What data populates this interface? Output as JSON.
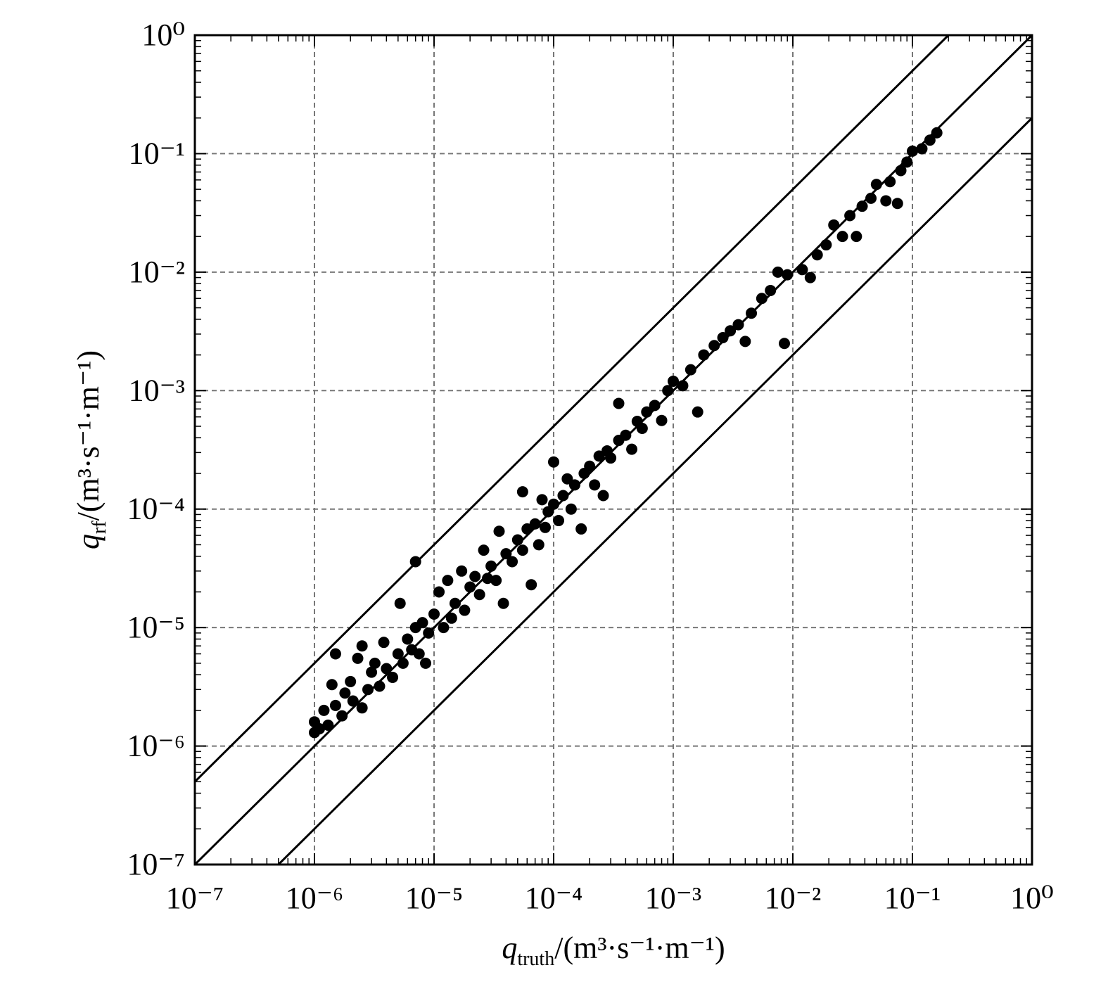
{
  "chart_data": {
    "type": "scatter",
    "xscale": "log",
    "yscale": "log",
    "grid": true,
    "xlim": [
      1e-07,
      1
    ],
    "ylim": [
      1e-07,
      1
    ],
    "xticks": [
      {
        "value": 1e-07,
        "label": "10⁻⁷"
      },
      {
        "value": 1e-06,
        "label": "10⁻⁶"
      },
      {
        "value": 1e-05,
        "label": "10⁻⁵"
      },
      {
        "value": 0.0001,
        "label": "10⁻⁴"
      },
      {
        "value": 0.001,
        "label": "10⁻³"
      },
      {
        "value": 0.01,
        "label": "10⁻²"
      },
      {
        "value": 0.1,
        "label": "10⁻¹"
      },
      {
        "value": 1,
        "label": "10⁰"
      }
    ],
    "yticks": [
      {
        "value": 1e-07,
        "label": "10⁻⁷"
      },
      {
        "value": 1e-06,
        "label": "10⁻⁶"
      },
      {
        "value": 1e-05,
        "label": "10⁻⁵"
      },
      {
        "value": 0.0001,
        "label": "10⁻⁴"
      },
      {
        "value": 0.001,
        "label": "10⁻³"
      },
      {
        "value": 0.01,
        "label": "10⁻²"
      },
      {
        "value": 0.1,
        "label": "10⁻¹"
      },
      {
        "value": 1,
        "label": "10⁰"
      }
    ],
    "xlabel": {
      "symbol": "q",
      "subscript": "truth",
      "unit": "/(m³·s⁻¹·m⁻¹)"
    },
    "ylabel": {
      "symbol": "q",
      "subscript": "rf",
      "unit": "/(m³·s⁻¹·m⁻¹)"
    },
    "series": [
      {
        "type": "scatter",
        "color": "#000000",
        "x": [
          1e-06,
          1e-06,
          1.1e-06,
          1.2e-06,
          1.3e-06,
          1.4e-06,
          1.5e-06,
          1.5e-06,
          1.7e-06,
          1.8e-06,
          2e-06,
          2.1e-06,
          2.3e-06,
          2.5e-06,
          2.5e-06,
          2.8e-06,
          3e-06,
          3.2e-06,
          3.5e-06,
          3.8e-06,
          4e-06,
          4.5e-06,
          5e-06,
          5.2e-06,
          5.5e-06,
          6e-06,
          6.5e-06,
          7e-06,
          7e-06,
          7.5e-06,
          8e-06,
          8.5e-06,
          9e-06,
          1e-05,
          1.1e-05,
          1.2e-05,
          1.3e-05,
          1.4e-05,
          1.5e-05,
          1.7e-05,
          1.8e-05,
          2e-05,
          2.2e-05,
          2.4e-05,
          2.6e-05,
          2.8e-05,
          3e-05,
          3.3e-05,
          3.5e-05,
          3.8e-05,
          4e-05,
          4.5e-05,
          5e-05,
          5.5e-05,
          5.5e-05,
          6e-05,
          6.5e-05,
          7e-05,
          7.5e-05,
          8e-05,
          8.5e-05,
          9e-05,
          0.0001,
          0.0001,
          0.00011,
          0.00012,
          0.00013,
          0.00014,
          0.00015,
          0.00017,
          0.00018,
          0.0002,
          0.00022,
          0.00024,
          0.00026,
          0.00028,
          0.0003,
          0.00035,
          0.00035,
          0.0004,
          0.00045,
          0.0005,
          0.00055,
          0.0006,
          0.0007,
          0.0008,
          0.0009,
          0.001,
          0.0012,
          0.0014,
          0.0016,
          0.0018,
          0.0022,
          0.0026,
          0.003,
          0.0035,
          0.004,
          0.0045,
          0.0055,
          0.0065,
          0.0075,
          0.0085,
          0.009,
          0.012,
          0.014,
          0.016,
          0.019,
          0.022,
          0.026,
          0.03,
          0.034,
          0.038,
          0.045,
          0.05,
          0.06,
          0.065,
          0.075,
          0.08,
          0.09,
          0.1,
          0.12,
          0.14,
          0.16
        ],
        "values": [
          1.3e-06,
          1.6e-06,
          1.4e-06,
          2e-06,
          1.5e-06,
          3.3e-06,
          6e-06,
          2.2e-06,
          1.8e-06,
          2.8e-06,
          3.5e-06,
          2.4e-06,
          5.5e-06,
          7e-06,
          2.1e-06,
          3e-06,
          4.2e-06,
          5e-06,
          3.2e-06,
          7.5e-06,
          4.5e-06,
          3.8e-06,
          6e-06,
          1.6e-05,
          5e-06,
          8e-06,
          6.5e-06,
          3.6e-05,
          1e-05,
          6e-06,
          1.1e-05,
          5e-06,
          9e-06,
          1.3e-05,
          2e-05,
          1e-05,
          2.5e-05,
          1.2e-05,
          1.6e-05,
          3e-05,
          1.4e-05,
          2.2e-05,
          2.7e-05,
          1.9e-05,
          4.5e-05,
          2.6e-05,
          3.3e-05,
          2.5e-05,
          6.5e-05,
          1.6e-05,
          4.2e-05,
          3.6e-05,
          5.5e-05,
          0.00014,
          4.5e-05,
          6.8e-05,
          2.3e-05,
          7.5e-05,
          5e-05,
          0.00012,
          7e-05,
          9.5e-05,
          0.00025,
          0.00011,
          8e-05,
          0.00013,
          0.00018,
          0.0001,
          0.00016,
          6.8e-05,
          0.0002,
          0.00023,
          0.00016,
          0.00028,
          0.00013,
          0.00031,
          0.00027,
          0.00078,
          0.00038,
          0.00042,
          0.00032,
          0.00055,
          0.00048,
          0.00066,
          0.00075,
          0.00056,
          0.001,
          0.0012,
          0.0011,
          0.0015,
          0.00066,
          0.002,
          0.0024,
          0.0028,
          0.0032,
          0.0036,
          0.0026,
          0.0045,
          0.006,
          0.007,
          0.01,
          0.0025,
          0.0095,
          0.0105,
          0.009,
          0.014,
          0.017,
          0.025,
          0.02,
          0.03,
          0.02,
          0.036,
          0.042,
          0.055,
          0.04,
          0.058,
          0.038,
          0.072,
          0.085,
          0.105,
          0.11,
          0.13,
          0.15
        ]
      },
      {
        "type": "line",
        "color": "#000000",
        "x": [
          1e-07,
          0.2
        ],
        "values": [
          5e-07,
          1
        ]
      },
      {
        "type": "line",
        "color": "#000000",
        "x": [
          1e-07,
          1
        ],
        "values": [
          1e-07,
          1
        ]
      },
      {
        "type": "line",
        "color": "#000000",
        "x": [
          5e-07,
          1
        ],
        "values": [
          1e-07,
          0.2
        ]
      }
    ]
  }
}
